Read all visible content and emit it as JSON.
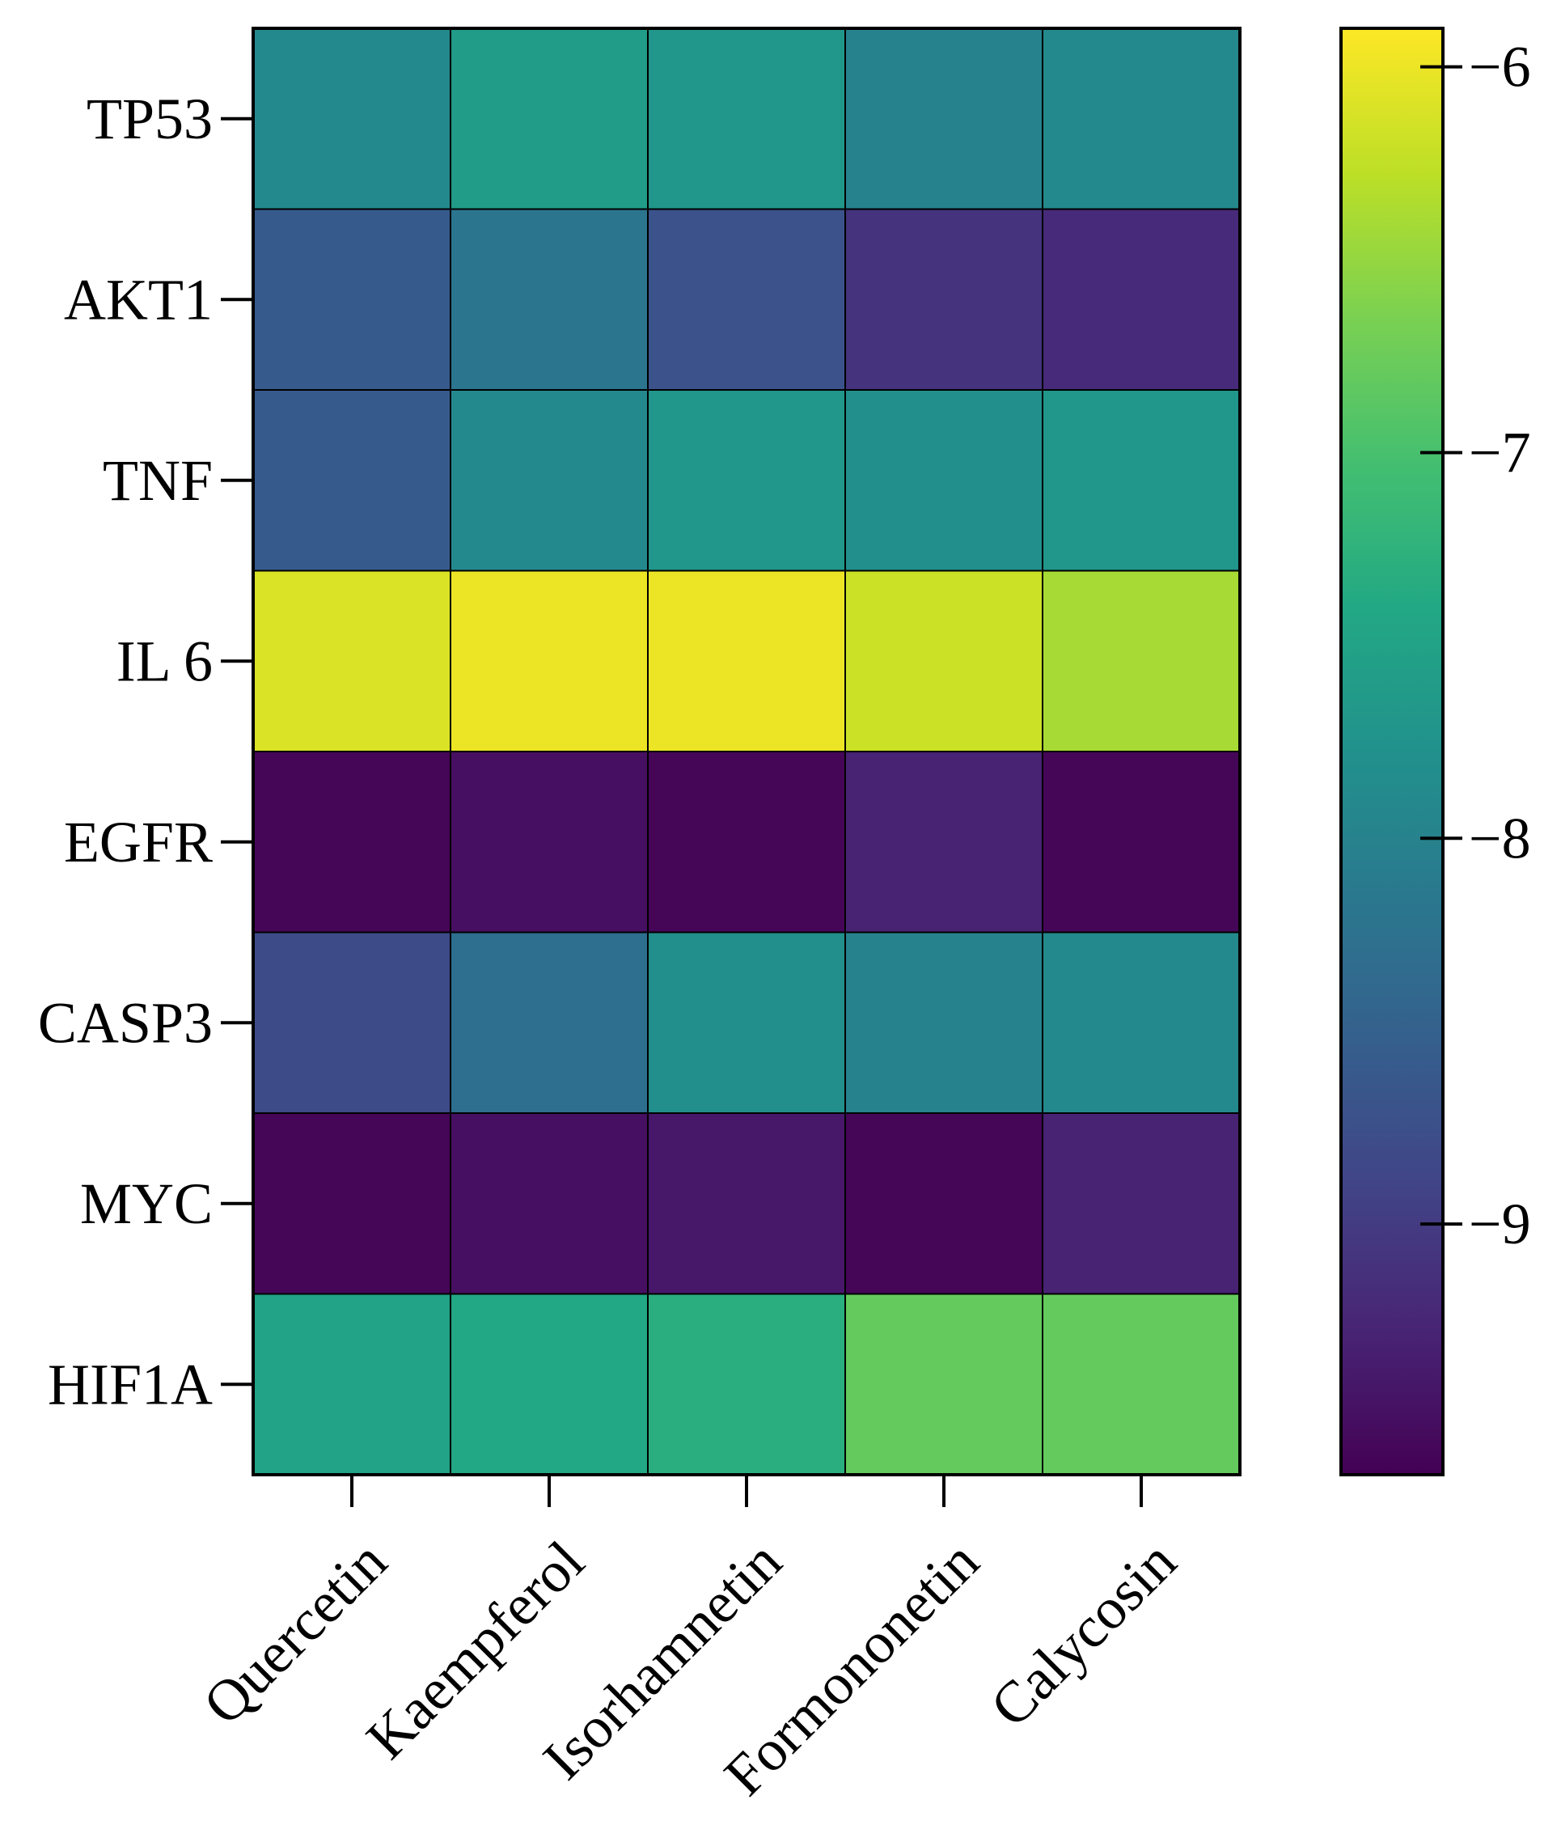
{
  "chart_data": {
    "type": "heatmap",
    "title": "",
    "xlabel": "",
    "ylabel": "",
    "rows": [
      "TP53",
      "AKT1",
      "TNF",
      "IL 6",
      "EGFR",
      "CASP3",
      "MYC",
      "HIF1A"
    ],
    "columns": [
      "Quercetin",
      "Kaempferol",
      "Isorhamnetin",
      "Formononetin",
      "Calycosin"
    ],
    "values": [
      [
        -7.9,
        -7.6,
        -7.7,
        -8.0,
        -7.9
      ],
      [
        -8.6,
        -8.2,
        -8.7,
        -9.1,
        -9.2
      ],
      [
        -8.6,
        -7.9,
        -7.7,
        -7.8,
        -7.7
      ],
      [
        -6.1,
        -6.0,
        -6.0,
        -6.2,
        -6.4
      ],
      [
        -9.6,
        -9.5,
        -9.6,
        -9.3,
        -9.6
      ],
      [
        -8.8,
        -8.3,
        -7.8,
        -8.0,
        -7.9
      ],
      [
        -9.6,
        -9.5,
        -9.4,
        -9.6,
        -9.3
      ],
      [
        -7.5,
        -7.4,
        -7.3,
        -6.8,
        -6.8
      ]
    ],
    "colorbar": {
      "min": -9.65,
      "max": -5.9,
      "ticks": [
        -6,
        -7,
        -8,
        -9
      ],
      "tick_labels": [
        "−6",
        "−7",
        "−8",
        "−9"
      ],
      "colormap": "viridis"
    }
  }
}
